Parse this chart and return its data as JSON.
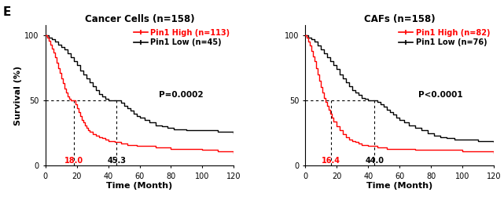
{
  "fig_label": "E",
  "panel1": {
    "title": "Cancer Cells (n=158)",
    "high_label": "Pin1 High (n=113)",
    "low_label": "Pin1 Low (n=45)",
    "pvalue": "P=0.0002",
    "median_high": 18.0,
    "median_low": 45.3
  },
  "panel2": {
    "title": "CAFs (n=158)",
    "high_label": "Pin1 High (n=82)",
    "low_label": "Pin1 Low (n=76)",
    "pvalue": "P<0.0001",
    "median_high": 16.4,
    "median_low": 44.0
  },
  "color_high": "#ff0000",
  "color_low": "#000000",
  "xlabel": "Time (Month)",
  "ylabel": "Survival (%)",
  "xlim": [
    0,
    120
  ],
  "ylim": [
    0,
    108
  ],
  "xticks": [
    0,
    20,
    40,
    60,
    80,
    100,
    120
  ],
  "yticks": [
    0,
    50,
    100
  ]
}
